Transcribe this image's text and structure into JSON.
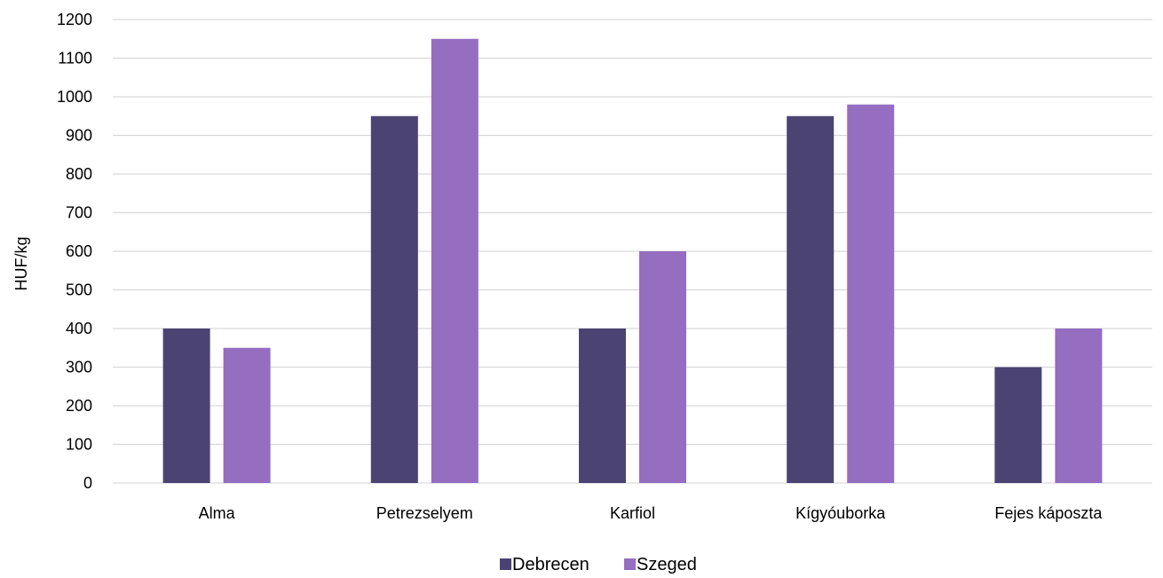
{
  "chart_data": {
    "type": "bar",
    "title": "",
    "xlabel": "",
    "ylabel": "HUF/kg",
    "categories": [
      "Alma",
      "Petrezselyem",
      "Karfiol",
      "Kígyóuborka",
      "Fejes káposzta"
    ],
    "series": [
      {
        "name": "Debrecen",
        "color": "#4b4372",
        "values": [
          400,
          950,
          400,
          950,
          300
        ]
      },
      {
        "name": "Szeged",
        "color": "#956dc1",
        "values": [
          350,
          1150,
          600,
          980,
          400
        ]
      }
    ],
    "ylim": [
      0,
      1200
    ],
    "yticks": [
      0,
      100,
      200,
      300,
      400,
      500,
      600,
      700,
      800,
      900,
      1000,
      1100,
      1200
    ],
    "grid": true,
    "gridline_color": "#d9d9d9",
    "legend_position": "bottom-center"
  }
}
